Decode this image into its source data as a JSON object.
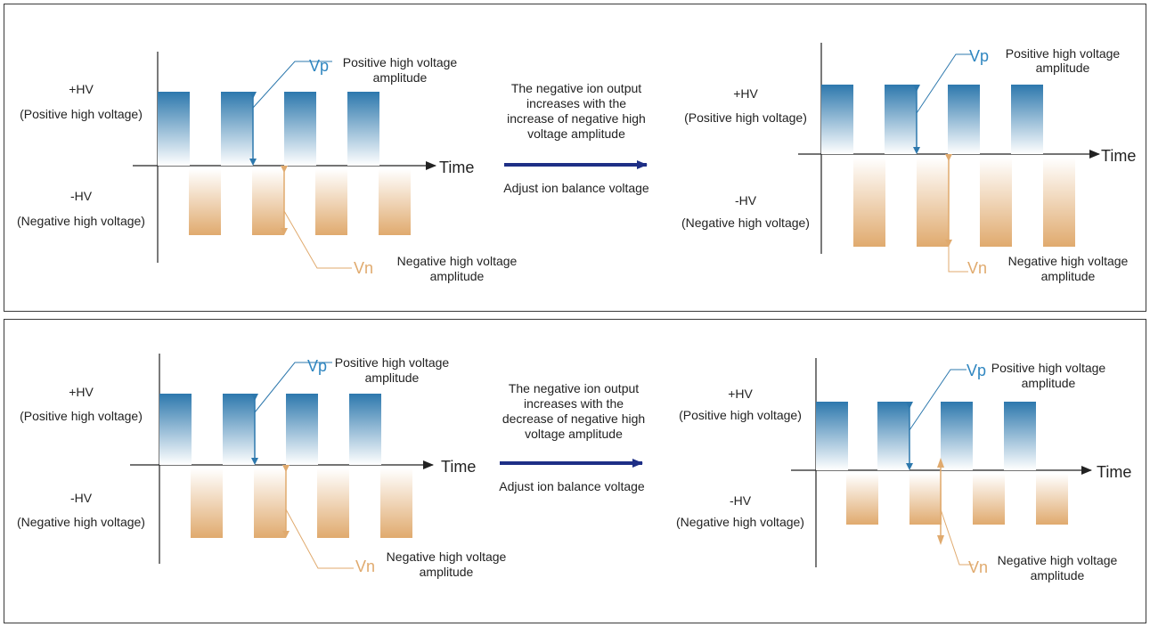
{
  "colors": {
    "positive": "#2d78ad",
    "negative": "#e0aa6e",
    "arrow": "#1e2f86",
    "axis": "#222222"
  },
  "labels": {
    "hv_pos_1": "+HV",
    "hv_pos_2": "(Positive high voltage)",
    "hv_neg_1": "-HV",
    "hv_neg_2": "(Negative high voltage)",
    "time": "Time",
    "vp": "Vp",
    "vn": "Vn",
    "vp_desc_1": "Positive high voltage",
    "vp_desc_2": "amplitude",
    "vn_desc_1": "Negative high voltage",
    "vn_desc_2": "amplitude",
    "adjust": "Adjust ion balance voltage"
  },
  "panels": {
    "top": {
      "caption": [
        "The negative ion output",
        "increases with the",
        "increase of negative high",
        "voltage amplitude"
      ]
    },
    "bottom": {
      "caption": [
        "The negative ion output",
        "increases with the",
        "decrease of negative high",
        "voltage amplitude"
      ]
    }
  }
}
